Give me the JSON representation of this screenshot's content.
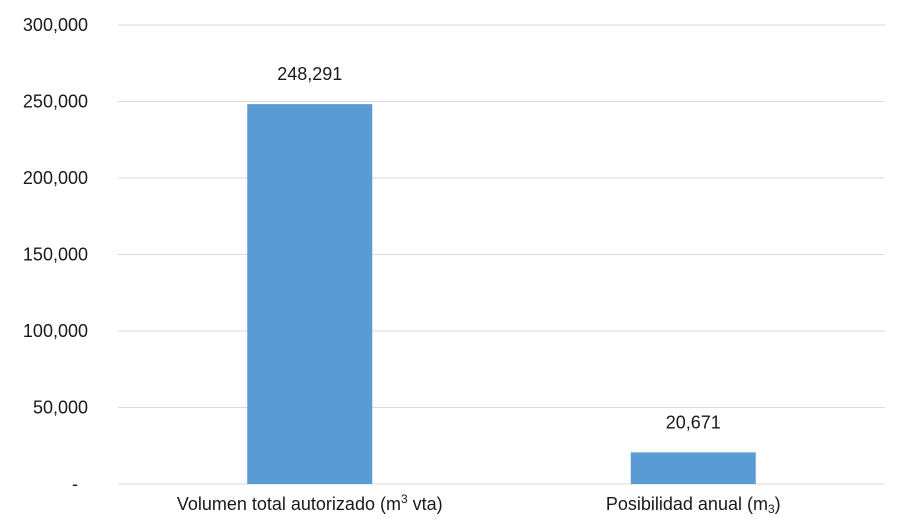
{
  "chart_data": {
    "type": "bar",
    "categories": [
      {
        "base": "Volumen total autorizado (m",
        "sup": "3",
        "tail": " vta)"
      },
      {
        "base": "Posibilidad anual (m",
        "sub": "3",
        "tail": ")"
      }
    ],
    "values": [
      248291,
      20671
    ],
    "data_labels": [
      "248,291",
      "20,671"
    ],
    "ylim": [
      0,
      300000
    ],
    "yticks": [
      {
        "value": 0,
        "label": "-"
      },
      {
        "value": 50000,
        "label": "50,000"
      },
      {
        "value": 100000,
        "label": "100,000"
      },
      {
        "value": 150000,
        "label": "150,000"
      },
      {
        "value": 200000,
        "label": "200,000"
      },
      {
        "value": 250000,
        "label": "250,000"
      },
      {
        "value": 300000,
        "label": "300,000"
      }
    ],
    "grid": true,
    "bar_color": "#5B9BD5",
    "grid_color": "#d9d9d9",
    "title": "",
    "xlabel": "",
    "ylabel": ""
  }
}
